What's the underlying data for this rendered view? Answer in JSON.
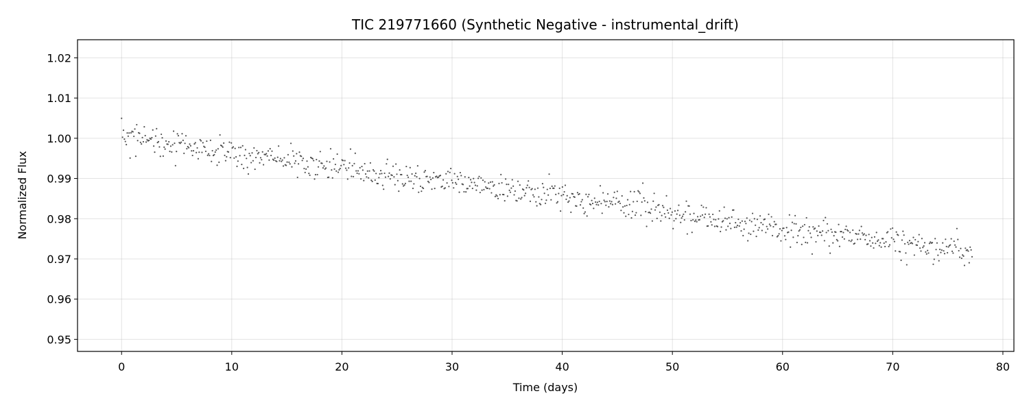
{
  "chart_data": {
    "type": "scatter",
    "title": "TIC 219771660 (Synthetic Negative - instrumental_drift)",
    "xlabel": "Time (days)",
    "ylabel": "Normalized Flux",
    "xlim": [
      -4,
      81
    ],
    "ylim": [
      0.947,
      1.0245
    ],
    "xticks": [
      0,
      10,
      20,
      30,
      40,
      50,
      60,
      70,
      80
    ],
    "yticks": [
      0.95,
      0.96,
      0.97,
      0.98,
      0.99,
      1.0,
      1.01,
      1.02
    ],
    "ytick_labels": [
      "0.95",
      "0.96",
      "0.97",
      "0.98",
      "0.99",
      "1.00",
      "1.01",
      "1.02"
    ],
    "grid": true,
    "point_color": "#333333",
    "series": [
      {
        "x_start": 0,
        "x_end": 77.2,
        "count": 900,
        "trend_start": 1.0,
        "trend_end": 0.9715,
        "noise_sd": 0.0018,
        "values": []
      }
    ]
  }
}
